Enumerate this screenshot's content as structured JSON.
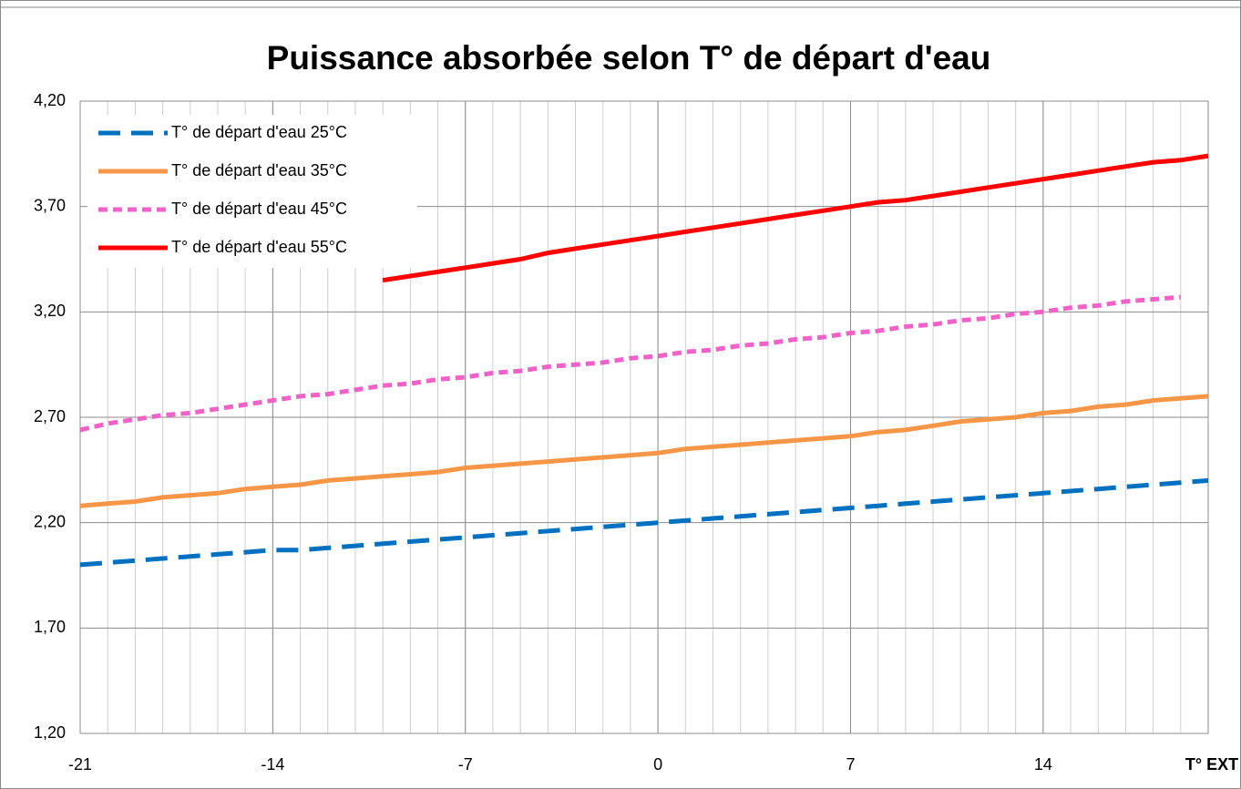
{
  "chart_data": {
    "type": "line",
    "title": "Puissance absorbée selon T° de départ d'eau",
    "xlabel": "T° EXT",
    "x": [
      -21,
      -20,
      -19,
      -18,
      -17,
      -16,
      -15,
      -14,
      -13,
      -12,
      -11,
      -10,
      -9,
      -8,
      -7,
      -6,
      -5,
      -4,
      -3,
      -2,
      -1,
      0,
      1,
      2,
      3,
      4,
      5,
      6,
      7,
      8,
      9,
      10,
      11,
      12,
      13,
      14,
      15,
      16,
      17,
      18,
      19,
      20
    ],
    "series": [
      {
        "name": "T° de départ d'eau 25°C",
        "color": "#0070c0",
        "dash": "long",
        "values": [
          2.0,
          2.01,
          2.02,
          2.03,
          2.04,
          2.05,
          2.06,
          2.07,
          2.07,
          2.08,
          2.09,
          2.1,
          2.11,
          2.12,
          2.13,
          2.14,
          2.15,
          2.16,
          2.17,
          2.18,
          2.19,
          2.2,
          2.21,
          2.22,
          2.23,
          2.24,
          2.25,
          2.26,
          2.27,
          2.28,
          2.29,
          2.3,
          2.31,
          2.32,
          2.33,
          2.34,
          2.35,
          2.36,
          2.37,
          2.38,
          2.39,
          2.4
        ]
      },
      {
        "name": "T° de départ d'eau 35°C",
        "color": "#f79646",
        "dash": "solid",
        "values": [
          2.28,
          2.29,
          2.3,
          2.32,
          2.33,
          2.34,
          2.36,
          2.37,
          2.38,
          2.4,
          2.41,
          2.42,
          2.43,
          2.44,
          2.46,
          2.47,
          2.48,
          2.49,
          2.5,
          2.51,
          2.52,
          2.53,
          2.55,
          2.56,
          2.57,
          2.58,
          2.59,
          2.6,
          2.61,
          2.63,
          2.64,
          2.66,
          2.68,
          2.69,
          2.7,
          2.72,
          2.73,
          2.75,
          2.76,
          2.78,
          2.79,
          2.8
        ]
      },
      {
        "name": "T° de départ d'eau 45°C",
        "color": "#f062c8",
        "dash": "short",
        "values": [
          2.64,
          2.67,
          2.69,
          2.71,
          2.72,
          2.74,
          2.76,
          2.78,
          2.8,
          2.81,
          2.83,
          2.85,
          2.86,
          2.88,
          2.89,
          2.91,
          2.92,
          2.94,
          2.95,
          2.96,
          2.98,
          2.99,
          3.01,
          3.02,
          3.04,
          3.05,
          3.07,
          3.08,
          3.1,
          3.11,
          3.13,
          3.14,
          3.16,
          3.17,
          3.19,
          3.2,
          3.22,
          3.23,
          3.25,
          3.26,
          3.27,
          null
        ]
      },
      {
        "name": "T° de départ d'eau 55°C",
        "color": "#ff0000",
        "dash": "solid",
        "values": [
          null,
          null,
          null,
          null,
          null,
          null,
          null,
          null,
          null,
          null,
          null,
          3.35,
          3.37,
          3.39,
          3.41,
          3.43,
          3.45,
          3.48,
          3.5,
          3.52,
          3.54,
          3.56,
          3.58,
          3.6,
          3.62,
          3.64,
          3.66,
          3.68,
          3.7,
          3.72,
          3.73,
          3.75,
          3.77,
          3.79,
          3.81,
          3.83,
          3.85,
          3.87,
          3.89,
          3.91,
          3.92,
          3.94
        ]
      }
    ],
    "xlim": [
      -21,
      20
    ],
    "xticks": [
      -21,
      -14,
      -7,
      0,
      7,
      14
    ],
    "ylim": [
      1.2,
      4.2
    ],
    "yticks": [
      {
        "value": 1.2,
        "label": "1,20"
      },
      {
        "value": 1.7,
        "label": "1,70"
      },
      {
        "value": 2.2,
        "label": "2,20"
      },
      {
        "value": 2.7,
        "label": "2,70"
      },
      {
        "value": 3.2,
        "label": "3,20"
      },
      {
        "value": 3.7,
        "label": "3,70"
      },
      {
        "value": 4.2,
        "label": "4,20"
      }
    ],
    "grid": true,
    "minor_grid": true,
    "legend": "upper left"
  }
}
